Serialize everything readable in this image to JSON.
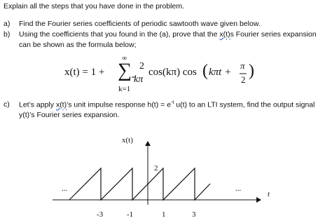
{
  "intro": "Explain all the steps that you have done in the problem.",
  "items": [
    {
      "marker": "a)",
      "text": "Find the Fourier series coefficients of periodic sawtooth wave given below."
    },
    {
      "marker": "b)",
      "line1_pre": "Using the coefficients that you found in the (a), prove that the ",
      "line1_link": "x(t)",
      "line1_post": "s Fourier series expansion",
      "line2": "can be shown as the formula below;"
    },
    {
      "marker": "c)",
      "line1_pre": "Let’s apply ",
      "line1_link": "x(t)",
      "line1_mid": "’s unit impulse response h(t) = e",
      "line1_sup": "-t",
      "line1_post": " u(t) to an LTI system, find the output signal",
      "line2": "y(t)’s Fourier series expansion."
    }
  ],
  "formula": {
    "lhs": "x(t) = 1 +",
    "sum_top": "∞",
    "sum": "∑",
    "sum_bottom": "k=1",
    "frac_num": "2",
    "frac_den": "kπ",
    "cos1": "cos(kπ) cos",
    "paren_open": "(",
    "arg": "kπt +",
    "pi_num": "π",
    "pi_den": "2",
    "paren_close": ")"
  },
  "figure": {
    "y_label": "x(t)",
    "peak_label": "2",
    "ellipsis_left": "...",
    "ellipsis_right": "...",
    "x_label": "t",
    "ticks": [
      "-3",
      "-1",
      "1",
      "3"
    ]
  }
}
